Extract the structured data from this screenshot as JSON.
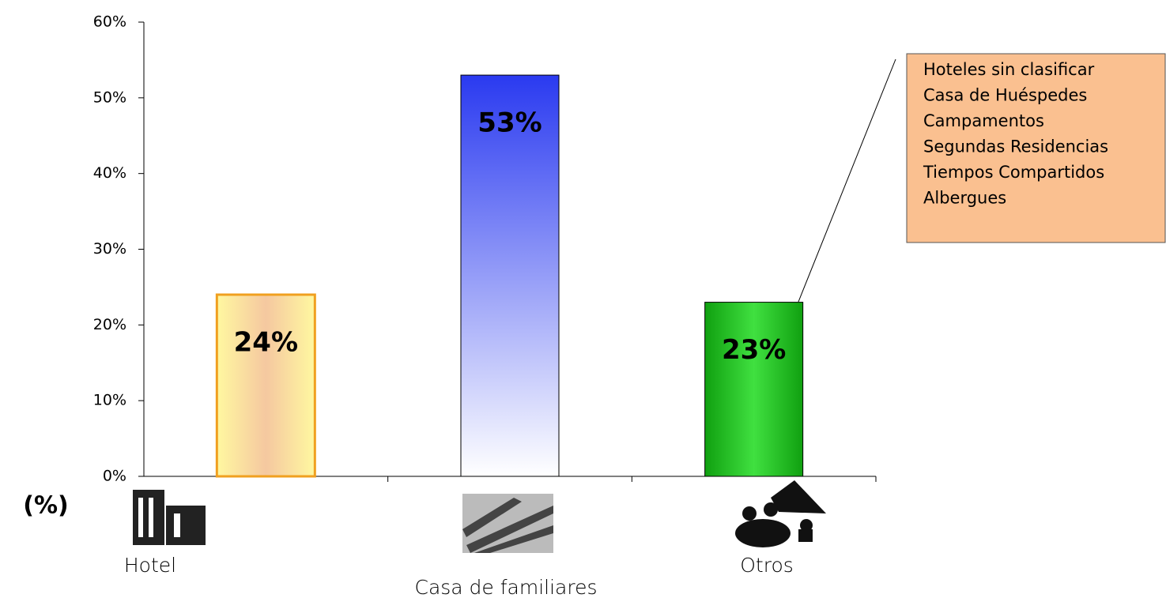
{
  "chart_data": {
    "type": "bar",
    "y_axis_label": "(%)",
    "categories": [
      "Hotel",
      "Casa de familiares",
      "Otros"
    ],
    "values": [
      24,
      53,
      23
    ],
    "value_labels": [
      "24%",
      "53%",
      "23%"
    ],
    "colors": [
      "#f5b070",
      "#2a3af0",
      "#10b010"
    ],
    "ylim": [
      0,
      60
    ],
    "yticks": [
      {
        "value": 0,
        "label": "0%"
      },
      {
        "value": 10,
        "label": "10%"
      },
      {
        "value": 20,
        "label": "20%"
      },
      {
        "value": 30,
        "label": "30%"
      },
      {
        "value": 40,
        "label": "40%"
      },
      {
        "value": 50,
        "label": "50%"
      },
      {
        "value": 60,
        "label": "60%"
      }
    ],
    "annotation": [
      "Hoteles sin clasificar",
      "Casa de Huéspedes",
      "Campamentos",
      "Segundas Residencias",
      "Tiempos Compartidos",
      "Albergues"
    ]
  }
}
